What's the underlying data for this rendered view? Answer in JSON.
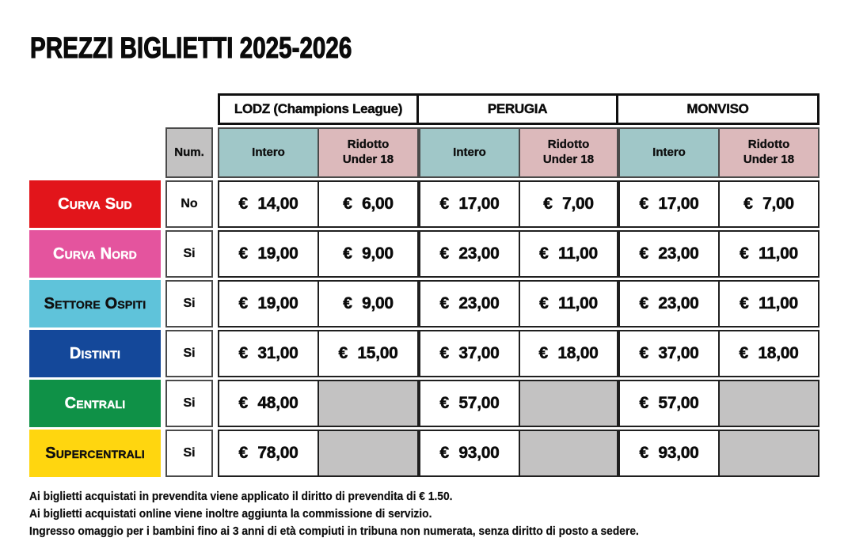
{
  "title": "PREZZI BIGLIETTI 2025-2026",
  "table": {
    "num_header": "Num.",
    "groups": [
      {
        "id": "lodz",
        "label": "LODZ (Champions League)"
      },
      {
        "id": "perugia",
        "label": "PERUGIA"
      },
      {
        "id": "monviso",
        "label": "MONVISO"
      }
    ],
    "sub_headers": {
      "intero": "Intero",
      "ridotto": "Ridotto Under 18"
    },
    "header_colors": {
      "intero_bg": "#a0c7c8",
      "ridotto_bg": "#dcb9bb",
      "num_bg": "#c3c2c2",
      "empty_cell_bg": "#c3c2c2"
    },
    "rows": [
      {
        "sector": "Curva Sud",
        "color": "#e2151b",
        "text_color": "#ffffff",
        "num": "No",
        "prices": [
          "€ 14,00",
          "€ 6,00",
          "€ 17,00",
          "€ 7,00",
          "€ 17,00",
          "€ 7,00"
        ]
      },
      {
        "sector": "Curva Nord",
        "color": "#e4549e",
        "text_color": "#ffffff",
        "num": "Si",
        "prices": [
          "€ 19,00",
          "€ 9,00",
          "€ 23,00",
          "€ 11,00",
          "€ 23,00",
          "€ 11,00"
        ]
      },
      {
        "sector": "Settore Ospiti",
        "color": "#5fc3da",
        "text_color": "#101010",
        "num": "Si",
        "prices": [
          "€ 19,00",
          "€ 9,00",
          "€ 23,00",
          "€ 11,00",
          "€ 23,00",
          "€ 11,00"
        ]
      },
      {
        "sector": "Distinti",
        "color": "#14489a",
        "text_color": "#ffffff",
        "num": "Si",
        "prices": [
          "€ 31,00",
          "€ 15,00",
          "€ 37,00",
          "€ 18,00",
          "€ 37,00",
          "€ 18,00"
        ]
      },
      {
        "sector": "Centrali",
        "color": "#0f9147",
        "text_color": "#ffffff",
        "num": "Si",
        "prices": [
          "€ 48,00",
          null,
          "€ 57,00",
          null,
          "€ 57,00",
          null
        ]
      },
      {
        "sector": "Supercentrali",
        "color": "#ffd60f",
        "text_color": "#101010",
        "num": "Si",
        "prices": [
          "€ 78,00",
          null,
          "€ 93,00",
          null,
          "€ 93,00",
          null
        ]
      }
    ]
  },
  "footnotes": [
    "Ai biglietti acquistati in prevendita viene applicato il diritto di prevendita di € 1.50.",
    "Ai biglietti acquistati online viene inoltre aggiunta la commissione di servizio.",
    "Ingresso omaggio per i bambini fino ai 3 anni di età compiuti in tribuna non numerata, senza diritto di posto a sedere."
  ]
}
